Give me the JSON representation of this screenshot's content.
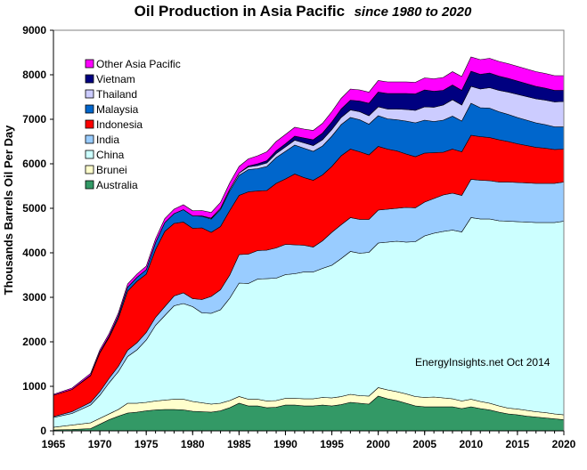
{
  "chart_data": {
    "type": "area",
    "stacked": true,
    "title": "Oil Production in Asia Pacific",
    "title_suffix": "since 1980 to 2020",
    "xlabel": "",
    "ylabel": "Thousands Barrels Oil Per Day",
    "xlim": [
      1965,
      2020
    ],
    "ylim": [
      0,
      9000
    ],
    "x_ticks": [
      1965,
      1970,
      1975,
      1980,
      1985,
      1990,
      1995,
      2000,
      2005,
      2010,
      2015,
      2020
    ],
    "y_ticks": [
      0,
      1000,
      2000,
      3000,
      4000,
      5000,
      6000,
      7000,
      8000,
      9000
    ],
    "grid": false,
    "legend_position": "top-left",
    "annotation": "EnergyInsights.net Oct 2014",
    "x": [
      1965,
      1967,
      1969,
      1970,
      1971,
      1972,
      1973,
      1974,
      1975,
      1976,
      1977,
      1978,
      1979,
      1980,
      1981,
      1982,
      1983,
      1984,
      1985,
      1986,
      1987,
      1988,
      1989,
      1990,
      1991,
      1992,
      1993,
      1994,
      1995,
      1996,
      1997,
      1998,
      1999,
      2000,
      2001,
      2002,
      2003,
      2004,
      2005,
      2006,
      2007,
      2008,
      2009,
      2010,
      2011,
      2012,
      2013,
      2014,
      2015,
      2016,
      2017,
      2018,
      2019,
      2020
    ],
    "series": [
      {
        "name": "Australia",
        "color": "#339966",
        "values": [
          20,
          30,
          50,
          150,
          250,
          330,
          400,
          420,
          450,
          470,
          480,
          480,
          470,
          440,
          430,
          420,
          450,
          520,
          620,
          560,
          560,
          520,
          530,
          580,
          580,
          560,
          560,
          580,
          560,
          590,
          640,
          620,
          600,
          780,
          720,
          680,
          620,
          560,
          540,
          540,
          540,
          540,
          500,
          540,
          500,
          470,
          420,
          380,
          360,
          330,
          310,
          290,
          270,
          250
        ]
      },
      {
        "name": "Brunei",
        "color": "#FFFFCC",
        "values": [
          60,
          100,
          130,
          130,
          130,
          150,
          220,
          200,
          190,
          200,
          210,
          230,
          240,
          220,
          200,
          180,
          170,
          160,
          150,
          150,
          150,
          150,
          150,
          150,
          150,
          160,
          160,
          170,
          180,
          180,
          180,
          170,
          180,
          190,
          200,
          200,
          210,
          210,
          210,
          220,
          200,
          180,
          170,
          170,
          160,
          150,
          140,
          130,
          130,
          130,
          120,
          120,
          110,
          110
        ]
      },
      {
        "name": "China",
        "color": "#CCFFFF",
        "values": [
          220,
          260,
          400,
          520,
          700,
          850,
          1050,
          1200,
          1400,
          1700,
          1900,
          2100,
          2150,
          2130,
          2020,
          2040,
          2100,
          2300,
          2550,
          2600,
          2700,
          2750,
          2750,
          2780,
          2800,
          2850,
          2850,
          2900,
          2980,
          3100,
          3210,
          3200,
          3230,
          3250,
          3320,
          3380,
          3410,
          3480,
          3630,
          3680,
          3740,
          3790,
          3800,
          4080,
          4100,
          4140,
          4160,
          4200,
          4210,
          4230,
          4250,
          4270,
          4300,
          4350
        ]
      },
      {
        "name": "India",
        "color": "#99CCFF",
        "values": [
          20,
          40,
          60,
          80,
          100,
          120,
          140,
          160,
          170,
          180,
          200,
          220,
          240,
          180,
          300,
          380,
          450,
          520,
          640,
          660,
          640,
          640,
          680,
          680,
          650,
          600,
          560,
          620,
          740,
          760,
          760,
          760,
          740,
          740,
          740,
          740,
          780,
          760,
          760,
          780,
          820,
          830,
          820,
          860,
          870,
          860,
          870,
          880,
          880,
          880,
          880,
          880,
          880,
          880
        ]
      },
      {
        "name": "Indonesia",
        "color": "#FF0000",
        "values": [
          480,
          500,
          600,
          870,
          920,
          1080,
          1330,
          1380,
          1310,
          1520,
          1690,
          1630,
          1590,
          1580,
          1610,
          1440,
          1420,
          1450,
          1330,
          1400,
          1340,
          1340,
          1450,
          1470,
          1590,
          1520,
          1500,
          1480,
          1480,
          1550,
          1540,
          1520,
          1450,
          1430,
          1350,
          1290,
          1200,
          1150,
          1100,
          1030,
          960,
          990,
          980,
          990,
          980,
          970,
          950,
          910,
          870,
          840,
          810,
          790,
          760,
          740
        ]
      },
      {
        "name": "Malaysia",
        "color": "#0066CC",
        "values": [
          0,
          0,
          10,
          20,
          30,
          60,
          90,
          90,
          100,
          160,
          200,
          220,
          280,
          280,
          260,
          300,
          380,
          440,
          450,
          500,
          500,
          540,
          580,
          620,
          650,
          660,
          650,
          650,
          680,
          700,
          710,
          720,
          690,
          690,
          680,
          700,
          740,
          760,
          740,
          700,
          720,
          740,
          690,
          720,
          650,
          660,
          630,
          610,
          590,
          570,
          550,
          530,
          510,
          500
        ]
      },
      {
        "name": "Thailand",
        "color": "#CCCCFF",
        "values": [
          0,
          0,
          0,
          0,
          0,
          0,
          0,
          0,
          0,
          0,
          0,
          0,
          0,
          0,
          10,
          20,
          30,
          40,
          50,
          60,
          70,
          80,
          90,
          100,
          110,
          120,
          130,
          140,
          150,
          160,
          170,
          180,
          190,
          200,
          220,
          240,
          260,
          280,
          300,
          320,
          340,
          370,
          360,
          380,
          420,
          460,
          480,
          500,
          520,
          530,
          540,
          550,
          560,
          570
        ]
      },
      {
        "name": "Vietnam",
        "color": "#000080",
        "values": [
          0,
          0,
          0,
          0,
          0,
          0,
          0,
          0,
          0,
          0,
          0,
          0,
          0,
          0,
          0,
          0,
          0,
          0,
          0,
          20,
          40,
          50,
          60,
          70,
          90,
          110,
          130,
          150,
          170,
          190,
          220,
          240,
          280,
          330,
          350,
          350,
          360,
          370,
          380,
          360,
          330,
          330,
          330,
          340,
          330,
          330,
          320,
          310,
          300,
          290,
          280,
          270,
          260,
          250
        ]
      },
      {
        "name": "Other Asia Pacific",
        "color": "#FF00FF",
        "values": [
          20,
          30,
          40,
          50,
          55,
          60,
          70,
          75,
          80,
          85,
          90,
          100,
          110,
          115,
          120,
          125,
          130,
          140,
          150,
          160,
          180,
          200,
          210,
          210,
          200,
          200,
          210,
          220,
          230,
          240,
          250,
          250,
          250,
          260,
          260,
          260,
          260,
          260,
          270,
          280,
          290,
          300,
          310,
          320,
          330,
          330,
          330,
          330,
          330,
          330,
          330,
          330,
          330,
          330
        ]
      }
    ]
  }
}
